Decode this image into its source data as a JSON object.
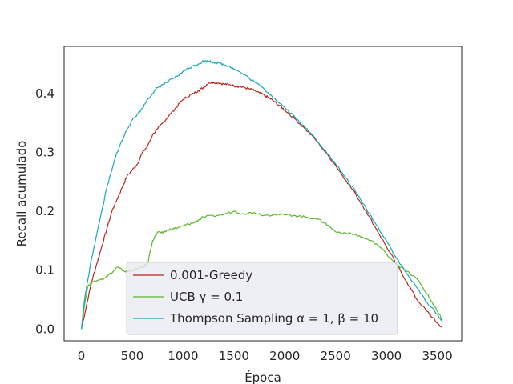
{
  "chart_data": {
    "type": "line",
    "title": "",
    "xlabel": "Época",
    "ylabel": "Recall acumulado",
    "xlim": [
      -170,
      3740
    ],
    "ylim": [
      -0.02,
      0.48
    ],
    "xticks": [
      0,
      500,
      1000,
      1500,
      2000,
      2500,
      3000,
      3500
    ],
    "yticks": [
      0.0,
      0.1,
      0.2,
      0.3,
      0.4
    ],
    "xtick_labels": [
      "0",
      "500",
      "1000",
      "1500",
      "2000",
      "2500",
      "3000",
      "3500"
    ],
    "ytick_labels": [
      "0.0",
      "0.1",
      "0.2",
      "0.3",
      "0.4"
    ],
    "grid": false,
    "legend_position": "lower-center",
    "series": [
      {
        "name": "0.001-Greedy",
        "color": "#b8271c",
        "x": [
          0,
          50,
          100,
          150,
          200,
          250,
          300,
          350,
          400,
          450,
          500,
          550,
          600,
          650,
          700,
          750,
          800,
          850,
          900,
          950,
          1000,
          1050,
          1100,
          1150,
          1200,
          1250,
          1300,
          1350,
          1400,
          1450,
          1500,
          1550,
          1600,
          1650,
          1700,
          1750,
          1800,
          1850,
          1900,
          1950,
          2000,
          2100,
          2200,
          2300,
          2400,
          2500,
          2600,
          2700,
          2800,
          2900,
          3000,
          3100,
          3200,
          3300,
          3400,
          3450,
          3500,
          3550
        ],
        "y": [
          0.0,
          0.04,
          0.08,
          0.11,
          0.14,
          0.17,
          0.2,
          0.22,
          0.24,
          0.26,
          0.27,
          0.28,
          0.3,
          0.31,
          0.33,
          0.34,
          0.35,
          0.36,
          0.37,
          0.38,
          0.39,
          0.395,
          0.4,
          0.405,
          0.41,
          0.418,
          0.419,
          0.418,
          0.416,
          0.415,
          0.413,
          0.412,
          0.41,
          0.408,
          0.405,
          0.401,
          0.397,
          0.392,
          0.386,
          0.379,
          0.372,
          0.357,
          0.34,
          0.322,
          0.3,
          0.278,
          0.253,
          0.228,
          0.2,
          0.17,
          0.14,
          0.11,
          0.08,
          0.05,
          0.03,
          0.02,
          0.01,
          0.002
        ]
      },
      {
        "name": "UCB γ = 0.1",
        "color": "#5ab82a",
        "x": [
          0,
          30,
          60,
          100,
          150,
          200,
          250,
          300,
          350,
          400,
          450,
          500,
          550,
          600,
          650,
          700,
          750,
          800,
          850,
          900,
          950,
          1000,
          1050,
          1100,
          1150,
          1200,
          1300,
          1400,
          1500,
          1600,
          1700,
          1800,
          1900,
          2000,
          2100,
          2200,
          2300,
          2400,
          2500,
          2600,
          2700,
          2800,
          2900,
          3000,
          3100,
          3200,
          3300,
          3400,
          3450,
          3500,
          3550
        ],
        "y": [
          0.0,
          0.04,
          0.07,
          0.08,
          0.082,
          0.085,
          0.09,
          0.095,
          0.105,
          0.1,
          0.097,
          0.1,
          0.102,
          0.105,
          0.11,
          0.15,
          0.165,
          0.163,
          0.168,
          0.17,
          0.172,
          0.175,
          0.178,
          0.18,
          0.185,
          0.19,
          0.192,
          0.195,
          0.2,
          0.196,
          0.198,
          0.193,
          0.195,
          0.194,
          0.193,
          0.19,
          0.188,
          0.18,
          0.165,
          0.163,
          0.16,
          0.153,
          0.145,
          0.128,
          0.11,
          0.098,
          0.085,
          0.06,
          0.045,
          0.03,
          0.015
        ]
      },
      {
        "name": "Thompson Sampling α = 1, β = 10",
        "color": "#17a9b6",
        "x": [
          0,
          30,
          60,
          100,
          150,
          200,
          250,
          300,
          350,
          400,
          450,
          500,
          550,
          600,
          650,
          700,
          750,
          800,
          850,
          900,
          950,
          1000,
          1050,
          1100,
          1150,
          1200,
          1250,
          1300,
          1350,
          1400,
          1450,
          1500,
          1600,
          1700,
          1800,
          1900,
          2000,
          2100,
          2200,
          2300,
          2400,
          2500,
          2600,
          2700,
          2800,
          2900,
          3000,
          3100,
          3200,
          3300,
          3400,
          3500,
          3550
        ],
        "y": [
          0.0,
          0.05,
          0.08,
          0.12,
          0.16,
          0.2,
          0.24,
          0.27,
          0.3,
          0.32,
          0.34,
          0.355,
          0.365,
          0.375,
          0.39,
          0.4,
          0.41,
          0.415,
          0.42,
          0.425,
          0.43,
          0.438,
          0.442,
          0.447,
          0.45,
          0.455,
          0.455,
          0.453,
          0.452,
          0.449,
          0.447,
          0.442,
          0.432,
          0.42,
          0.407,
          0.392,
          0.376,
          0.36,
          0.342,
          0.324,
          0.303,
          0.28,
          0.257,
          0.232,
          0.205,
          0.177,
          0.15,
          0.12,
          0.094,
          0.07,
          0.045,
          0.025,
          0.012
        ]
      }
    ],
    "legend": [
      {
        "text": "0.001-Greedy",
        "color": "#b8271c"
      },
      {
        "text": "UCB γ = 0.1",
        "color": "#5ab82a"
      },
      {
        "text": "Thompson Sampling α = 1, β = 10",
        "color": "#17a9b6"
      }
    ]
  }
}
